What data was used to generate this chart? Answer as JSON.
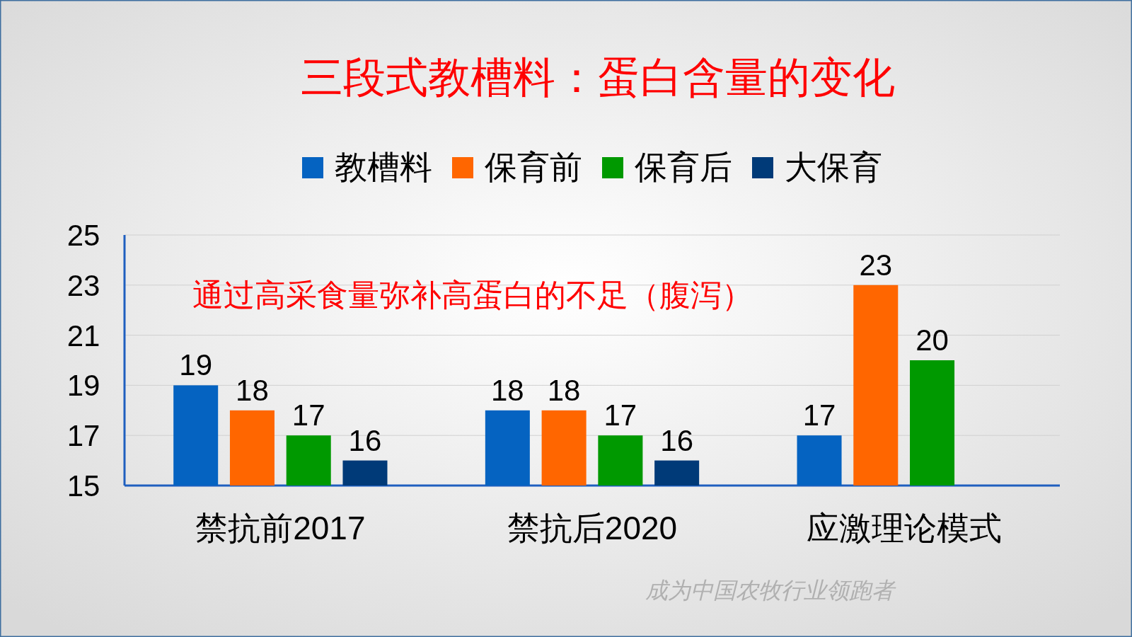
{
  "chart_data": {
    "type": "bar",
    "title": "三段式教槽料：蛋白含量的变化",
    "categories": [
      "禁抗前2017",
      "禁抗后2020",
      "应激理论模式"
    ],
    "series": [
      {
        "name": "教槽料",
        "color": "#0563c1",
        "values": [
          19,
          18,
          17
        ]
      },
      {
        "name": "保育前",
        "color": "#ff6600",
        "values": [
          18,
          18,
          23
        ]
      },
      {
        "name": "保育后",
        "color": "#009900",
        "values": [
          17,
          17,
          20
        ]
      },
      {
        "name": "大保育",
        "color": "#003a78",
        "values": [
          16,
          16,
          null
        ]
      }
    ],
    "ylim": [
      15,
      25
    ],
    "yticks": [
      15,
      17,
      19,
      21,
      23,
      25
    ],
    "grid": "y",
    "legend": "top",
    "data_labels": true,
    "annotations": [
      "通过高采食量弥补高蛋白的不足（腹泻）",
      "成为中国农牧行业领跑者"
    ]
  }
}
